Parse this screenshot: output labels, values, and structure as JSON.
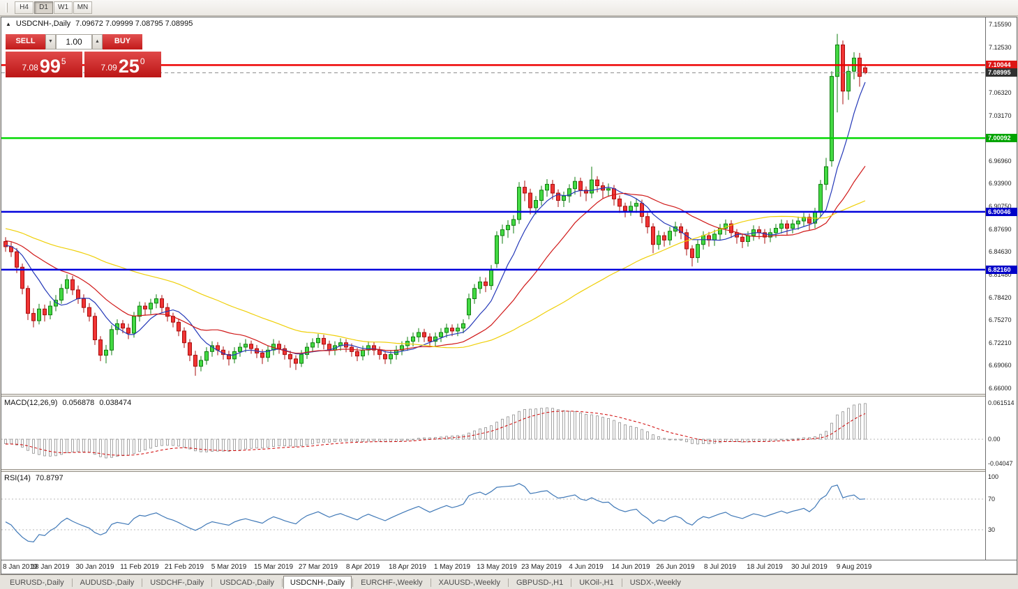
{
  "toolbar": {
    "periods": [
      "H4",
      "D1",
      "W1",
      "MN"
    ],
    "active_period": "D1"
  },
  "chart": {
    "title": "USDCNH-,Daily",
    "ohlc": "7.09672 7.09999 7.08795 7.08995"
  },
  "icons": {
    "collapse": "▲",
    "vol_down": "▼",
    "vol_up": "▲"
  },
  "trade": {
    "sell_label": "SELL",
    "buy_label": "BUY",
    "volume": "1.00",
    "bid": {
      "prefix": "7.08",
      "big": "99",
      "sup": "5"
    },
    "ask": {
      "prefix": "7.09",
      "big": "25",
      "sup": "0"
    }
  },
  "levels": [
    {
      "value": 7.10044,
      "label": "7.10044",
      "color": "#ee0000",
      "badge": "#dd1515",
      "style": "solid",
      "width": 2.5,
      "name": "resistance-line-710044"
    },
    {
      "value": 7.08995,
      "label": "7.08995",
      "color": "#888888",
      "badge": "#303030",
      "style": "dashed",
      "width": 1,
      "name": "bid-price-line"
    },
    {
      "value": 7.00092,
      "label": "7.00092",
      "color": "#00d800",
      "badge": "#00a400",
      "style": "solid",
      "width": 2.5,
      "name": "support-line-700092"
    },
    {
      "value": 6.90046,
      "label": "6.90046",
      "color": "#0000dc",
      "badge": "#0000c8",
      "style": "solid",
      "width": 2.5,
      "name": "support-line-690046"
    },
    {
      "value": 6.8216,
      "label": "6.82160",
      "color": "#0000dc",
      "badge": "#0000c8",
      "style": "solid",
      "width": 2.5,
      "name": "support-line-682160"
    }
  ],
  "price_axis": {
    "max": 7.1559,
    "min": 6.66,
    "labels": [
      "7.15590",
      "7.12530",
      "7.09480",
      "7.06320",
      "7.03170",
      "7.00090",
      "6.96960",
      "6.93900",
      "6.90750",
      "6.87690",
      "6.84630",
      "6.81480",
      "6.78420",
      "6.75270",
      "6.72210",
      "6.69060",
      "6.66000"
    ]
  },
  "date_axis": {
    "every": 8,
    "labels": [
      "8 Jan 2019",
      "18 Jan 2019",
      "30 Jan 2019",
      "11 Feb 2019",
      "21 Feb 2019",
      "5 Mar 2019",
      "15 Mar 2019",
      "27 Mar 2019",
      "8 Apr 2019",
      "18 Apr 2019",
      "1 May 2019",
      "13 May 2019",
      "23 May 2019",
      "4 Jun 2019",
      "14 Jun 2019",
      "26 Jun 2019",
      "8 Jul 2019",
      "18 Jul 2019",
      "30 Jul 2019",
      "9 Aug 2019"
    ]
  },
  "macd": {
    "label": "MACD(12,26,9)",
    "value_main": "0.056878",
    "value_signal": "0.038474",
    "params": [
      12,
      26,
      9
    ],
    "axis": {
      "max": 0.061514,
      "min": -0.04047,
      "max_label": "0.061514",
      "zero_label": "0.00",
      "min_label": "-0.04047"
    },
    "hist_color": "#8f8f8f",
    "signal_color": "#cf0000"
  },
  "rsi": {
    "label": "RSI(14)",
    "value": "70.8797",
    "period": 14,
    "levels": [
      70,
      30
    ],
    "color": "#3f78b7",
    "axis": {
      "top": "100",
      "upper": "70",
      "lower": "30"
    }
  },
  "tabs": [
    {
      "label": "EURUSD-,Daily",
      "active": false
    },
    {
      "label": "AUDUSD-,Daily",
      "active": false
    },
    {
      "label": "USDCHF-,Daily",
      "active": false
    },
    {
      "label": "USDCAD-,Daily",
      "active": false
    },
    {
      "label": "USDCNH-,Daily",
      "active": true
    },
    {
      "label": "EURCHF-,Weekly",
      "active": false
    },
    {
      "label": "XAUUSD-,Weekly",
      "active": false
    },
    {
      "label": "GBPUSD-,H1",
      "active": false
    },
    {
      "label": "UKOil-,H1",
      "active": false
    },
    {
      "label": "USDX-,Weekly",
      "active": false
    }
  ],
  "chart_data": {
    "type": "candlestick",
    "symbol": "USDCNH-",
    "timeframe": "Daily",
    "title": "USDCNH-,Daily",
    "last_ohlc": {
      "open": 7.09672,
      "high": 7.09999,
      "low": 7.08795,
      "close": 7.08995
    },
    "colors": {
      "bull": "#43d943",
      "bull_border": "#0f7d0f",
      "bear": "#f03434",
      "bear_border": "#a80d0d"
    },
    "ma": [
      {
        "name": "fast-ma",
        "period": 8,
        "color": "#2438b8"
      },
      {
        "name": "mid-ma",
        "period": 20,
        "color": "#d01818"
      },
      {
        "name": "slow-ma",
        "period": 50,
        "color": "#efcf07"
      }
    ],
    "pre_closes": [
      6.952,
      6.946,
      6.94,
      6.944,
      6.936,
      6.93,
      6.934,
      6.926,
      6.92,
      6.924,
      6.916,
      6.91,
      6.905,
      6.908,
      6.9,
      6.895,
      6.898,
      6.89,
      6.885,
      6.888,
      6.882,
      6.876,
      6.88,
      6.874,
      6.868,
      6.872,
      6.866,
      6.87,
      6.876,
      6.882,
      6.876,
      6.87,
      6.874,
      6.868,
      6.862,
      6.866,
      6.872,
      6.878,
      6.872,
      6.866,
      6.87,
      6.864,
      6.858,
      6.862,
      6.868,
      6.864,
      6.858,
      6.852,
      6.856,
      6.862,
      6.858,
      6.852,
      6.848,
      6.852,
      6.856
    ],
    "candles": [
      [
        6.86,
        6.866,
        6.846,
        6.853
      ],
      [
        6.853,
        6.859,
        6.839,
        6.846
      ],
      [
        6.846,
        6.851,
        6.817,
        6.825
      ],
      [
        6.825,
        6.83,
        6.788,
        6.796
      ],
      [
        6.796,
        6.8,
        6.753,
        6.762
      ],
      [
        6.762,
        6.769,
        6.743,
        6.752
      ],
      [
        6.752,
        6.775,
        6.747,
        6.768
      ],
      [
        6.768,
        6.774,
        6.751,
        6.76
      ],
      [
        6.76,
        6.779,
        6.754,
        6.772
      ],
      [
        6.772,
        6.787,
        6.765,
        6.78
      ],
      [
        6.78,
        6.802,
        6.775,
        6.796
      ],
      [
        6.796,
        6.815,
        6.789,
        6.808
      ],
      [
        6.808,
        6.813,
        6.787,
        6.794
      ],
      [
        6.794,
        6.8,
        6.775,
        6.782
      ],
      [
        6.782,
        6.788,
        6.763,
        6.77
      ],
      [
        6.77,
        6.776,
        6.751,
        6.758
      ],
      [
        6.758,
        6.763,
        6.719,
        6.726
      ],
      [
        6.726,
        6.731,
        6.697,
        6.705
      ],
      [
        6.705,
        6.719,
        6.694,
        6.712
      ],
      [
        6.712,
        6.746,
        6.705,
        6.74
      ],
      [
        6.74,
        6.754,
        6.733,
        6.748
      ],
      [
        6.748,
        6.753,
        6.735,
        6.742
      ],
      [
        6.742,
        6.748,
        6.727,
        6.735
      ],
      [
        6.735,
        6.764,
        6.729,
        6.758
      ],
      [
        6.758,
        6.778,
        6.751,
        6.772
      ],
      [
        6.772,
        6.777,
        6.759,
        6.768
      ],
      [
        6.768,
        6.782,
        6.761,
        6.776
      ],
      [
        6.776,
        6.788,
        6.769,
        6.782
      ],
      [
        6.782,
        6.787,
        6.763,
        6.77
      ],
      [
        6.77,
        6.776,
        6.751,
        6.758
      ],
      [
        6.758,
        6.763,
        6.743,
        6.75
      ],
      [
        6.75,
        6.755,
        6.731,
        6.738
      ],
      [
        6.738,
        6.743,
        6.715,
        6.722
      ],
      [
        6.722,
        6.727,
        6.697,
        6.705
      ],
      [
        6.705,
        6.711,
        6.677,
        6.69
      ],
      [
        6.69,
        6.704,
        6.683,
        6.698
      ],
      [
        6.698,
        6.716,
        6.692,
        6.71
      ],
      [
        6.71,
        6.724,
        6.703,
        6.718
      ],
      [
        6.718,
        6.723,
        6.705,
        6.712
      ],
      [
        6.712,
        6.717,
        6.699,
        6.706
      ],
      [
        6.706,
        6.711,
        6.691,
        6.7
      ],
      [
        6.7,
        6.716,
        6.694,
        6.71
      ],
      [
        6.71,
        6.722,
        6.703,
        6.716
      ],
      [
        6.716,
        6.727,
        6.709,
        6.72
      ],
      [
        6.72,
        6.725,
        6.707,
        6.714
      ],
      [
        6.714,
        6.719,
        6.701,
        6.708
      ],
      [
        6.708,
        6.713,
        6.693,
        6.702
      ],
      [
        6.702,
        6.718,
        6.696,
        6.712
      ],
      [
        6.712,
        6.727,
        6.705,
        6.72
      ],
      [
        6.72,
        6.725,
        6.707,
        6.714
      ],
      [
        6.714,
        6.719,
        6.699,
        6.706
      ],
      [
        6.706,
        6.711,
        6.688,
        6.7
      ],
      [
        6.7,
        6.705,
        6.685,
        6.694
      ],
      [
        6.694,
        6.712,
        6.689,
        6.706
      ],
      [
        6.706,
        6.722,
        6.7,
        6.716
      ],
      [
        6.716,
        6.728,
        6.709,
        6.722
      ],
      [
        6.722,
        6.734,
        6.715,
        6.728
      ],
      [
        6.728,
        6.733,
        6.713,
        6.72
      ],
      [
        6.72,
        6.725,
        6.705,
        6.712
      ],
      [
        6.712,
        6.724,
        6.705,
        6.718
      ],
      [
        6.718,
        6.728,
        6.711,
        6.722
      ],
      [
        6.722,
        6.727,
        6.709,
        6.716
      ],
      [
        6.716,
        6.721,
        6.703,
        6.71
      ],
      [
        6.71,
        6.715,
        6.697,
        6.704
      ],
      [
        6.704,
        6.718,
        6.698,
        6.712
      ],
      [
        6.712,
        6.724,
        6.705,
        6.718
      ],
      [
        6.718,
        6.723,
        6.705,
        6.712
      ],
      [
        6.712,
        6.717,
        6.699,
        6.706
      ],
      [
        6.706,
        6.711,
        6.693,
        6.7
      ],
      [
        6.7,
        6.712,
        6.693,
        6.706
      ],
      [
        6.706,
        6.718,
        6.699,
        6.712
      ],
      [
        6.712,
        6.724,
        6.705,
        6.718
      ],
      [
        6.718,
        6.73,
        6.711,
        6.724
      ],
      [
        6.724,
        6.736,
        6.717,
        6.73
      ],
      [
        6.73,
        6.742,
        6.723,
        6.736
      ],
      [
        6.736,
        6.741,
        6.723,
        6.73
      ],
      [
        6.73,
        6.735,
        6.717,
        6.724
      ],
      [
        6.724,
        6.736,
        6.717,
        6.73
      ],
      [
        6.73,
        6.742,
        6.723,
        6.736
      ],
      [
        6.736,
        6.748,
        6.729,
        6.742
      ],
      [
        6.742,
        6.747,
        6.731,
        6.738
      ],
      [
        6.738,
        6.748,
        6.731,
        6.742
      ],
      [
        6.742,
        6.754,
        6.735,
        6.748
      ],
      [
        6.76,
        6.789,
        6.754,
        6.782
      ],
      [
        6.782,
        6.802,
        6.775,
        6.796
      ],
      [
        6.796,
        6.812,
        6.789,
        6.805
      ],
      [
        6.805,
        6.811,
        6.791,
        6.8
      ],
      [
        6.8,
        6.828,
        6.794,
        6.822
      ],
      [
        6.83,
        6.874,
        6.824,
        6.868
      ],
      [
        6.868,
        6.883,
        6.857,
        6.876
      ],
      [
        6.876,
        6.889,
        6.865,
        6.882
      ],
      [
        6.882,
        6.896,
        6.871,
        6.89
      ],
      [
        6.89,
        6.941,
        6.884,
        6.934
      ],
      [
        6.934,
        6.943,
        6.915,
        6.926
      ],
      [
        6.926,
        6.932,
        6.897,
        6.906
      ],
      [
        6.906,
        6.922,
        6.897,
        6.916
      ],
      [
        6.916,
        6.936,
        6.909,
        6.93
      ],
      [
        6.93,
        6.945,
        6.921,
        6.938
      ],
      [
        6.938,
        6.944,
        6.917,
        6.926
      ],
      [
        6.926,
        6.931,
        6.907,
        6.916
      ],
      [
        6.916,
        6.928,
        6.907,
        6.922
      ],
      [
        6.922,
        6.938,
        6.913,
        6.932
      ],
      [
        6.932,
        6.948,
        6.924,
        6.942
      ],
      [
        6.942,
        6.947,
        6.921,
        6.93
      ],
      [
        6.93,
        6.935,
        6.915,
        6.926
      ],
      [
        6.926,
        6.962,
        6.919,
        6.944
      ],
      [
        6.944,
        6.949,
        6.927,
        6.936
      ],
      [
        6.936,
        6.941,
        6.919,
        6.93
      ],
      [
        6.93,
        6.939,
        6.921,
        6.932
      ],
      [
        6.932,
        6.937,
        6.909,
        6.918
      ],
      [
        6.918,
        6.923,
        6.899,
        6.908
      ],
      [
        6.908,
        6.913,
        6.893,
        6.902
      ],
      [
        6.902,
        6.915,
        6.895,
        6.908
      ],
      [
        6.908,
        6.919,
        6.899,
        6.912
      ],
      [
        6.912,
        6.917,
        6.885,
        6.894
      ],
      [
        6.894,
        6.899,
        6.871,
        6.88
      ],
      [
        6.88,
        6.885,
        6.844,
        6.856
      ],
      [
        6.856,
        6.875,
        6.849,
        6.868
      ],
      [
        6.868,
        6.873,
        6.853,
        6.862
      ],
      [
        6.862,
        6.88,
        6.855,
        6.874
      ],
      [
        6.874,
        6.887,
        6.867,
        6.88
      ],
      [
        6.88,
        6.885,
        6.863,
        6.872
      ],
      [
        6.872,
        6.877,
        6.841,
        6.85
      ],
      [
        6.85,
        6.855,
        6.826,
        6.838
      ],
      [
        6.838,
        6.862,
        6.831,
        6.856
      ],
      [
        6.856,
        6.874,
        6.849,
        6.868
      ],
      [
        6.868,
        6.873,
        6.853,
        6.862
      ],
      [
        6.862,
        6.876,
        6.854,
        6.87
      ],
      [
        6.87,
        6.884,
        6.862,
        6.878
      ],
      [
        6.878,
        6.89,
        6.869,
        6.884
      ],
      [
        6.884,
        6.889,
        6.865,
        6.872
      ],
      [
        6.872,
        6.877,
        6.857,
        6.866
      ],
      [
        6.866,
        6.871,
        6.851,
        6.86
      ],
      [
        6.86,
        6.874,
        6.853,
        6.868
      ],
      [
        6.868,
        6.882,
        6.861,
        6.876
      ],
      [
        6.876,
        6.881,
        6.863,
        6.872
      ],
      [
        6.872,
        6.877,
        6.857,
        6.866
      ],
      [
        6.866,
        6.878,
        6.859,
        6.872
      ],
      [
        6.872,
        6.884,
        6.865,
        6.878
      ],
      [
        6.878,
        6.89,
        6.871,
        6.884
      ],
      [
        6.884,
        6.889,
        6.869,
        6.878
      ],
      [
        6.878,
        6.89,
        6.871,
        6.884
      ],
      [
        6.884,
        6.894,
        6.876,
        6.888
      ],
      [
        6.888,
        6.899,
        6.881,
        6.893
      ],
      [
        6.893,
        6.898,
        6.875,
        6.885
      ],
      [
        6.885,
        6.906,
        6.878,
        6.9
      ],
      [
        6.9,
        6.944,
        6.894,
        6.938
      ],
      [
        6.938,
        6.974,
        6.93,
        6.962
      ],
      [
        6.97,
        7.092,
        6.962,
        7.085
      ],
      [
        7.085,
        7.143,
        7.036,
        7.128
      ],
      [
        7.128,
        7.134,
        7.047,
        7.065
      ],
      [
        7.065,
        7.099,
        7.053,
        7.092
      ],
      [
        7.092,
        7.118,
        7.081,
        7.11
      ],
      [
        7.11,
        7.117,
        7.071,
        7.085
      ],
      [
        7.09672,
        7.09999,
        7.08795,
        7.08995
      ]
    ]
  }
}
